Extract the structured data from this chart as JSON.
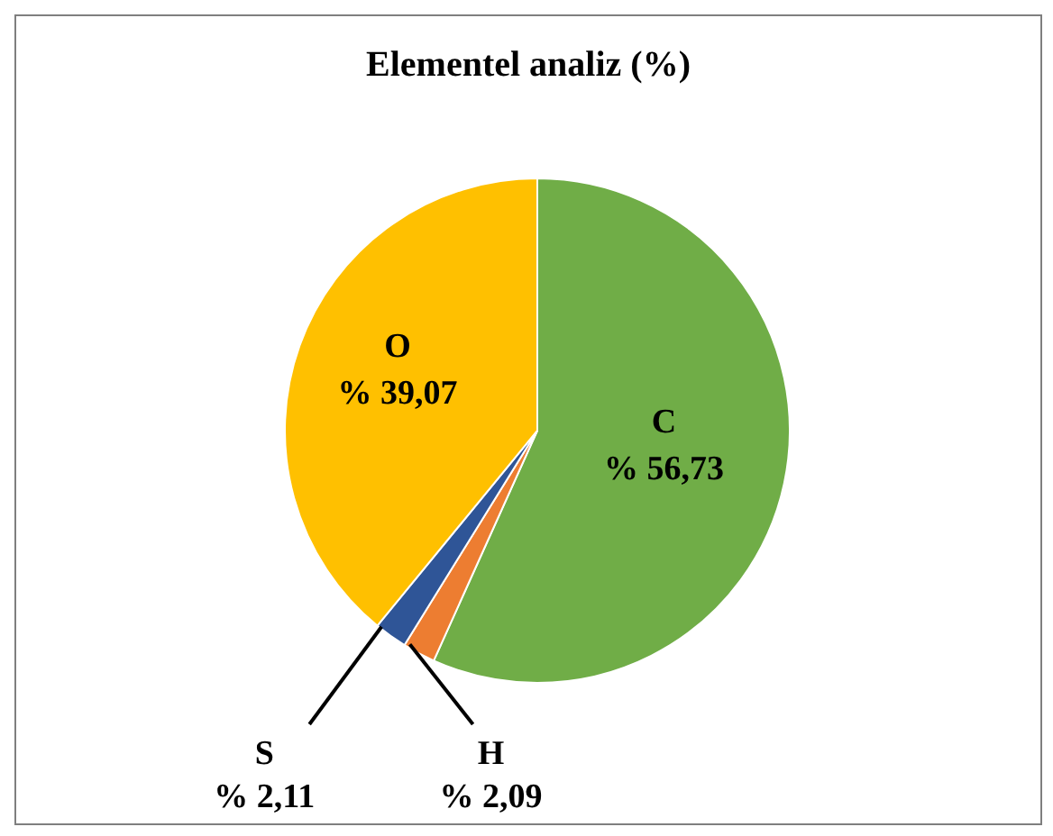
{
  "chart_data": {
    "type": "pie",
    "title": "Elementel analiz (%)",
    "categories": [
      "C",
      "H",
      "S",
      "O"
    ],
    "values": [
      56.73,
      2.09,
      2.11,
      39.07
    ],
    "colors": [
      "#70ad47",
      "#ed7d31",
      "#2f5597",
      "#ffc000"
    ],
    "value_labels": [
      "% 56,73",
      "% 2,09",
      "% 2,11",
      "% 39,07"
    ],
    "legend": false
  }
}
